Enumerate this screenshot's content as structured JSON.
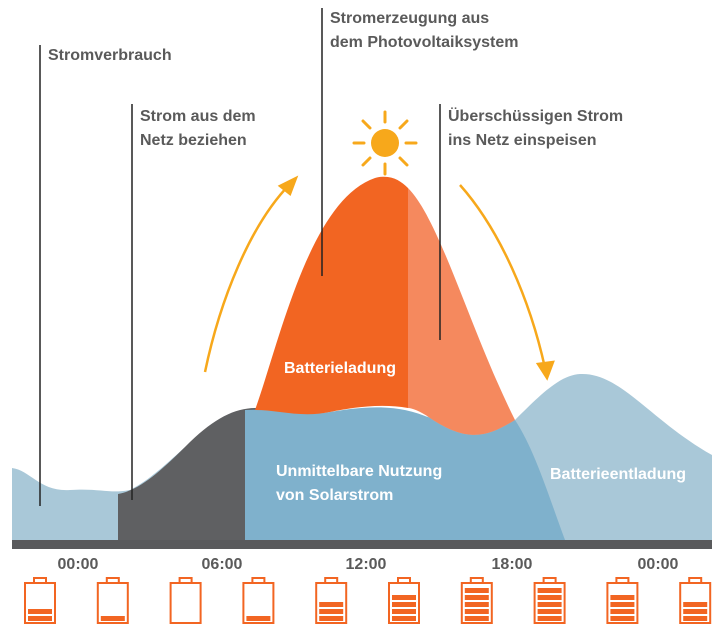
{
  "labels": [
    {
      "lines": [
        "Stromverbrauch"
      ]
    },
    {
      "lines": [
        "Strom aus dem",
        "Netz beziehen"
      ]
    },
    {
      "lines": [
        "Stromerzeugung aus",
        "dem Photovoltaiksystem"
      ]
    },
    {
      "lines": [
        "Überschüssigen Strom",
        "ins Netz einspeisen"
      ]
    }
  ],
  "areas": {
    "charging": "Batterieladung",
    "direct": [
      "Unmittelbare Nutzung",
      "von Solarstrom"
    ],
    "discharging": "Batterieentladung"
  },
  "times": [
    "00:00",
    "06:00",
    "12:00",
    "18:00",
    "00:00"
  ],
  "batteries": [
    2,
    1,
    0,
    1,
    3,
    4,
    5,
    5,
    4,
    3
  ]
}
